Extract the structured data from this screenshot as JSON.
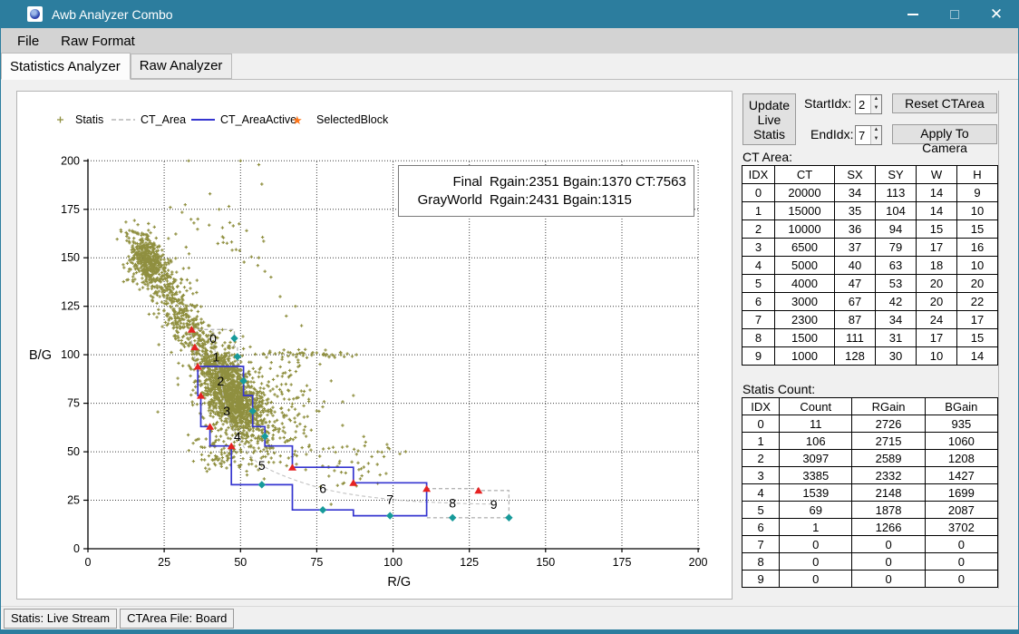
{
  "window": {
    "title": "Awb Analyzer Combo"
  },
  "titlebar_icons": {
    "app_icon": "awb-swirl-logo",
    "minimize": "minimize-icon",
    "maximize": "maximize-icon",
    "close": "close-icon"
  },
  "menu": {
    "items": [
      "File",
      "Raw Format"
    ]
  },
  "tabs": {
    "statistics": "Statistics Analyzer",
    "raw": "Raw Analyzer"
  },
  "chart_data": {
    "type": "scatter",
    "xlabel": "R/G",
    "ylabel": "B/G",
    "xlim": [
      0,
      200
    ],
    "ylim": [
      0,
      200
    ],
    "ticks": [
      0,
      25,
      50,
      75,
      100,
      125,
      150,
      175,
      200
    ],
    "grid": "dotted",
    "legend": [
      {
        "label": "Statis",
        "marker": "plus",
        "color": "#8f8f3f"
      },
      {
        "label": "CT_Area",
        "marker": "dashed-line",
        "color": "#b5b5b5"
      },
      {
        "label": "CT_AreaActive",
        "marker": "solid-line",
        "color": "#3535d0"
      },
      {
        "label": "SelectedBlock",
        "marker": "star",
        "color": "#ff7518"
      }
    ],
    "annotation": {
      "rows": [
        {
          "label": "Final",
          "text": "Rgain:2351  Bgain:1370  CT:7563"
        },
        {
          "label": "GrayWorld",
          "text": "Rgain:2431  Bgain:1315"
        }
      ]
    },
    "box_labels": [
      "0",
      "1",
      "2",
      "3",
      "4",
      "5",
      "6",
      "7",
      "8",
      "9"
    ],
    "diamond_points": [
      [
        48,
        108.5
      ],
      [
        49,
        99
      ],
      [
        51,
        86.5
      ],
      [
        54,
        71
      ],
      [
        58,
        58
      ],
      [
        57,
        33
      ],
      [
        77,
        20
      ],
      [
        99,
        17
      ],
      [
        119.5,
        16
      ],
      [
        138,
        16
      ]
    ],
    "scatter": {
      "seed": 12345,
      "clusters": [
        [
          380,
          19.5,
          149,
          2.6,
          7.0,
          -0.16
        ],
        [
          150,
          23.5,
          141,
          4.0,
          8.0,
          -0.22
        ],
        [
          160,
          29,
          124,
          3.5,
          8.0,
          -0.28
        ],
        [
          150,
          35,
          110,
          4.0,
          7.0,
          -0.3
        ],
        [
          420,
          44,
          92,
          4.0,
          7.0,
          -0.3
        ],
        [
          900,
          48,
          76,
          4.6,
          8.5,
          -0.3
        ],
        [
          240,
          52,
          66,
          7.5,
          10,
          -0.3
        ],
        [
          90,
          44,
          49,
          6,
          5.5,
          -0.2
        ],
        [
          90,
          63,
          82,
          8,
          11,
          -0.2
        ],
        [
          45,
          72,
          100.5,
          8.5,
          1.0,
          0
        ],
        [
          26,
          46,
          163,
          6,
          9,
          -0.5
        ],
        [
          12,
          92,
          49,
          5,
          4,
          0
        ]
      ],
      "band": {
        "n": 150,
        "noise": [
          5,
          7
        ],
        "points": [
          [
            15,
            168
          ],
          [
            22,
            144
          ],
          [
            30,
            120
          ],
          [
            38,
            102
          ],
          [
            47,
            82
          ],
          [
            55,
            62
          ],
          [
            66,
            50
          ],
          [
            82,
            43
          ],
          [
            95,
            40
          ]
        ]
      },
      "extra_points": [
        [
          33,
          200
        ],
        [
          50,
          200
        ],
        [
          56,
          198
        ],
        [
          40,
          183
        ],
        [
          43,
          175
        ],
        [
          27,
          176
        ],
        [
          52,
          164
        ],
        [
          56,
          150
        ],
        [
          58,
          143
        ],
        [
          60,
          140
        ],
        [
          85,
          100.5
        ],
        [
          84,
          99
        ],
        [
          87,
          79
        ],
        [
          95,
          50
        ],
        [
          97,
          47.5
        ],
        [
          91,
          55
        ],
        [
          57,
          188
        ],
        [
          36,
          170
        ],
        [
          65,
          120
        ],
        [
          70,
          115
        ],
        [
          75,
          101
        ],
        [
          80,
          100
        ],
        [
          88,
          100
        ],
        [
          63,
          130
        ],
        [
          68,
          125
        ]
      ]
    }
  },
  "right_panel": {
    "update_button": "Update Live Statis",
    "start_idx": {
      "label": "StartIdx:",
      "value": "2"
    },
    "end_idx": {
      "label": "EndIdx:",
      "value": "7"
    },
    "reset_button": "Reset CTArea",
    "apply_button": "Apply To Camera",
    "ct_area_label": "CT Area:",
    "ct_table": {
      "headers": [
        "IDX",
        "CT",
        "SX",
        "SY",
        "W",
        "H"
      ],
      "rows": [
        [
          0,
          20000,
          34,
          113,
          14,
          9
        ],
        [
          1,
          15000,
          35,
          104,
          14,
          10
        ],
        [
          2,
          10000,
          36,
          94,
          15,
          15
        ],
        [
          3,
          6500,
          37,
          79,
          17,
          16
        ],
        [
          4,
          5000,
          40,
          63,
          18,
          10
        ],
        [
          5,
          4000,
          47,
          53,
          20,
          20
        ],
        [
          6,
          3000,
          67,
          42,
          20,
          22
        ],
        [
          7,
          2300,
          87,
          34,
          24,
          17
        ],
        [
          8,
          1500,
          111,
          31,
          17,
          15
        ],
        [
          9,
          1000,
          128,
          30,
          10,
          14
        ]
      ]
    },
    "statis_label": "Statis Count:",
    "statis_table": {
      "headers": [
        "IDX",
        "Count",
        "RGain",
        "BGain"
      ],
      "rows": [
        [
          0,
          11,
          2726,
          935
        ],
        [
          1,
          106,
          2715,
          1060
        ],
        [
          2,
          3097,
          2589,
          1208
        ],
        [
          3,
          3385,
          2332,
          1427
        ],
        [
          4,
          1539,
          2148,
          1699
        ],
        [
          5,
          69,
          1878,
          2087
        ],
        [
          6,
          1,
          1266,
          3702
        ],
        [
          7,
          0,
          0,
          0
        ],
        [
          8,
          0,
          0,
          0
        ],
        [
          9,
          0,
          0,
          0
        ]
      ]
    }
  },
  "status_bar": {
    "items": [
      "Statis: Live Stream",
      "CTArea File: Board"
    ]
  },
  "colors": {
    "titlebar": "#2c7d9e",
    "statis_marker": "#8f8f3f",
    "ct_area": "#b5b5b5",
    "ct_area_active": "#3535d0",
    "selected_block": "#ff7518",
    "corner_triangle": "#e62222",
    "corner_diamond": "#179a9a"
  }
}
